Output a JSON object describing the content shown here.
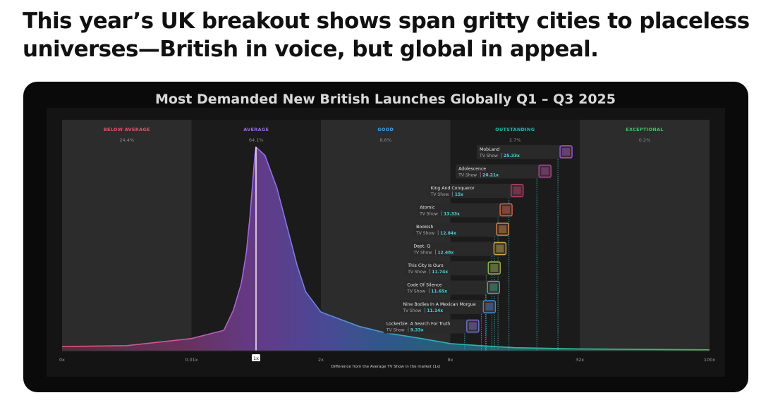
{
  "headline": "This year’s UK breakout shows span gritty cities to placeless universes—British in voice, but global in appeal.",
  "chart_data": {
    "type": "area",
    "title": "Most Demanded New British Launches Globally Q1 – Q3 2025",
    "xlabel": "Difference from the Average TV Show in the market (1x)",
    "x_scale": "segmented-log",
    "x_ticks": [
      "0x",
      "0.01x",
      "1x",
      "2x",
      "8x",
      "32x",
      "100x"
    ],
    "highlight_tick": "1x",
    "bands": [
      {
        "name": "BELOW AVERAGE",
        "pct": "24.4%",
        "color": "#e0526c"
      },
      {
        "name": "AVERAGE",
        "pct": "64.1%",
        "color": "#9a6ae0"
      },
      {
        "name": "GOOD",
        "pct": "8.6%",
        "color": "#4e9bd8"
      },
      {
        "name": "OUTSTANDING",
        "pct": "2.7%",
        "color": "#2ab3b0"
      },
      {
        "name": "EXCEPTIONAL",
        "pct": "0.2%",
        "color": "#3fbf6a"
      }
    ],
    "series": [
      {
        "kind": "distribution",
        "points": [
          [
            0,
            0.02
          ],
          [
            0.005,
            0.025
          ],
          [
            0.01,
            0.06
          ],
          [
            0.1,
            0.1
          ],
          [
            0.2,
            0.2
          ],
          [
            0.35,
            0.33
          ],
          [
            0.5,
            0.48
          ],
          [
            0.65,
            0.66
          ],
          [
            0.8,
            0.84
          ],
          [
            0.92,
            0.96
          ],
          [
            1,
            1
          ],
          [
            1.1,
            0.96
          ],
          [
            1.25,
            0.8
          ],
          [
            1.4,
            0.6
          ],
          [
            1.55,
            0.42
          ],
          [
            1.7,
            0.29
          ],
          [
            2,
            0.19
          ],
          [
            3,
            0.12
          ],
          [
            4,
            0.088
          ],
          [
            6,
            0.058
          ],
          [
            8,
            0.035
          ],
          [
            12,
            0.022
          ],
          [
            16,
            0.015
          ],
          [
            32,
            0.009
          ],
          [
            64,
            0.006
          ],
          [
            100,
            0.004
          ]
        ]
      }
    ],
    "titles": [
      {
        "name": "MobLand",
        "type": "TV Show",
        "value": 25.33,
        "label": "25.33x",
        "color": "#9a5ad8"
      },
      {
        "name": "Adolescence",
        "type": "TV Show",
        "value": 20.21,
        "label": "20.21x",
        "color": "#b04aa0"
      },
      {
        "name": "King And Conqueror",
        "type": "TV Show",
        "value": 15,
        "label": "15x",
        "color": "#c0406a"
      },
      {
        "name": "Atomic",
        "type": "TV Show",
        "value": 13.33,
        "label": "13.33x",
        "color": "#d06a4a"
      },
      {
        "name": "Bookish",
        "type": "TV Show",
        "value": 12.84,
        "label": "12.84x",
        "color": "#d88a3a"
      },
      {
        "name": "Dept. Q",
        "type": "TV Show",
        "value": 12.48,
        "label": "12.48x",
        "color": "#c8b040"
      },
      {
        "name": "This City Is Ours",
        "type": "TV Show",
        "value": 11.74,
        "label": "11.74x",
        "color": "#8ab848"
      },
      {
        "name": "Code Of Silence",
        "type": "TV Show",
        "value": 11.65,
        "label": "11.65x",
        "color": "#3eb088"
      },
      {
        "name": "Nine Bodies In A Mexican Morgue",
        "type": "TV Show",
        "value": 11.14,
        "label": "11.14x",
        "color": "#3a8ad0"
      },
      {
        "name": "Lockerbie: A Search For Truth",
        "type": "TV Show",
        "value": 9.33,
        "label": "9.33x",
        "color": "#6a7ad8"
      }
    ]
  }
}
